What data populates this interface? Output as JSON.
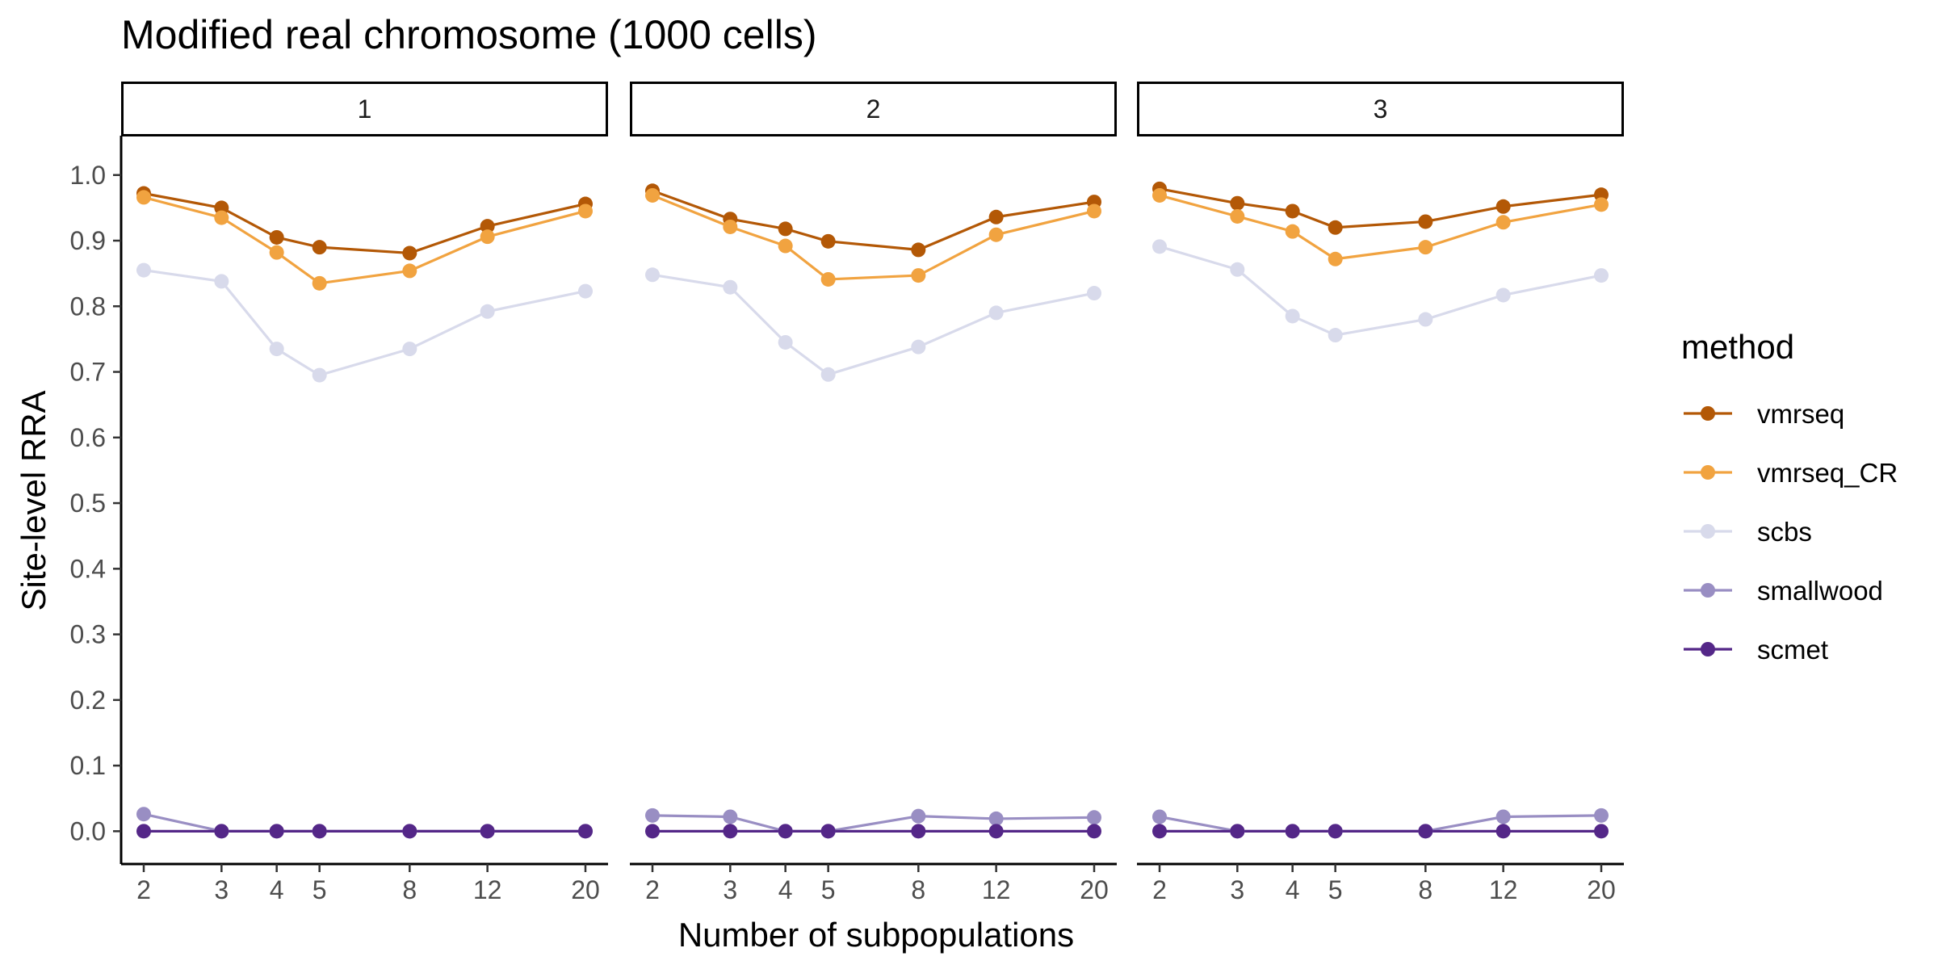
{
  "chart_data": {
    "type": "line",
    "title": "Modified real chromosome (1000 cells)",
    "xlabel": "Number of subpopulations",
    "ylabel": "Site-level RRA",
    "x_scale": "log",
    "x": [
      2,
      3,
      4,
      5,
      8,
      12,
      20
    ],
    "x_tick_labels": [
      "2",
      "3",
      "4",
      "5",
      "8",
      "12",
      "20"
    ],
    "ylim": [
      -0.05,
      1.06
    ],
    "y_ticks": [
      0.0,
      0.1,
      0.2,
      0.3,
      0.4,
      0.5,
      0.6,
      0.7,
      0.8,
      0.9,
      1.0
    ],
    "y_tick_labels": [
      "0.0",
      "0.1",
      "0.2",
      "0.3",
      "0.4",
      "0.5",
      "0.6",
      "0.7",
      "0.8",
      "0.9",
      "1.0"
    ],
    "grid": false,
    "legend": {
      "title": "method",
      "position": "right"
    },
    "series_styles": [
      {
        "name": "vmrseq",
        "color": "#B35806"
      },
      {
        "name": "vmrseq_CR",
        "color": "#F1A340"
      },
      {
        "name": "scbs",
        "color": "#D8DAEB"
      },
      {
        "name": "smallwood",
        "color": "#998EC3"
      },
      {
        "name": "scmet",
        "color": "#542788"
      }
    ],
    "panels": [
      {
        "label": "1",
        "series": [
          {
            "name": "vmrseq",
            "values": [
              0.972,
              0.95,
              0.905,
              0.89,
              0.881,
              0.922,
              0.956
            ]
          },
          {
            "name": "vmrseq_CR",
            "values": [
              0.966,
              0.935,
              0.882,
              0.835,
              0.854,
              0.906,
              0.945
            ]
          },
          {
            "name": "scbs",
            "values": [
              0.855,
              0.838,
              0.735,
              0.695,
              0.735,
              0.792,
              0.823
            ]
          },
          {
            "name": "smallwood",
            "values": [
              0.026,
              0.0,
              0.0,
              0.0,
              0.0,
              0.0,
              0.0
            ]
          },
          {
            "name": "scmet",
            "values": [
              0.0,
              0.0,
              0.0,
              0.0,
              0.0,
              0.0,
              0.0
            ]
          }
        ]
      },
      {
        "label": "2",
        "series": [
          {
            "name": "vmrseq",
            "values": [
              0.976,
              0.933,
              0.918,
              0.899,
              0.886,
              0.936,
              0.959
            ]
          },
          {
            "name": "vmrseq_CR",
            "values": [
              0.969,
              0.921,
              0.892,
              0.841,
              0.847,
              0.909,
              0.945
            ]
          },
          {
            "name": "scbs",
            "values": [
              0.848,
              0.829,
              0.745,
              0.696,
              0.738,
              0.79,
              0.82
            ]
          },
          {
            "name": "smallwood",
            "values": [
              0.024,
              0.022,
              0.0,
              0.0,
              0.023,
              0.019,
              0.021
            ]
          },
          {
            "name": "scmet",
            "values": [
              0.0,
              0.0,
              0.0,
              0.0,
              0.0,
              0.0,
              0.0
            ]
          }
        ]
      },
      {
        "label": "3",
        "series": [
          {
            "name": "vmrseq",
            "values": [
              0.979,
              0.957,
              0.945,
              0.92,
              0.929,
              0.952,
              0.97
            ]
          },
          {
            "name": "vmrseq_CR",
            "values": [
              0.969,
              0.937,
              0.914,
              0.872,
              0.89,
              0.928,
              0.955
            ]
          },
          {
            "name": "scbs",
            "values": [
              0.891,
              0.856,
              0.785,
              0.756,
              0.78,
              0.817,
              0.847
            ]
          },
          {
            "name": "smallwood",
            "values": [
              0.022,
              0.0,
              0.0,
              0.0,
              0.0,
              0.022,
              0.024
            ]
          },
          {
            "name": "scmet",
            "values": [
              0.0,
              0.0,
              0.0,
              0.0,
              0.0,
              0.0,
              0.0
            ]
          }
        ]
      }
    ]
  }
}
